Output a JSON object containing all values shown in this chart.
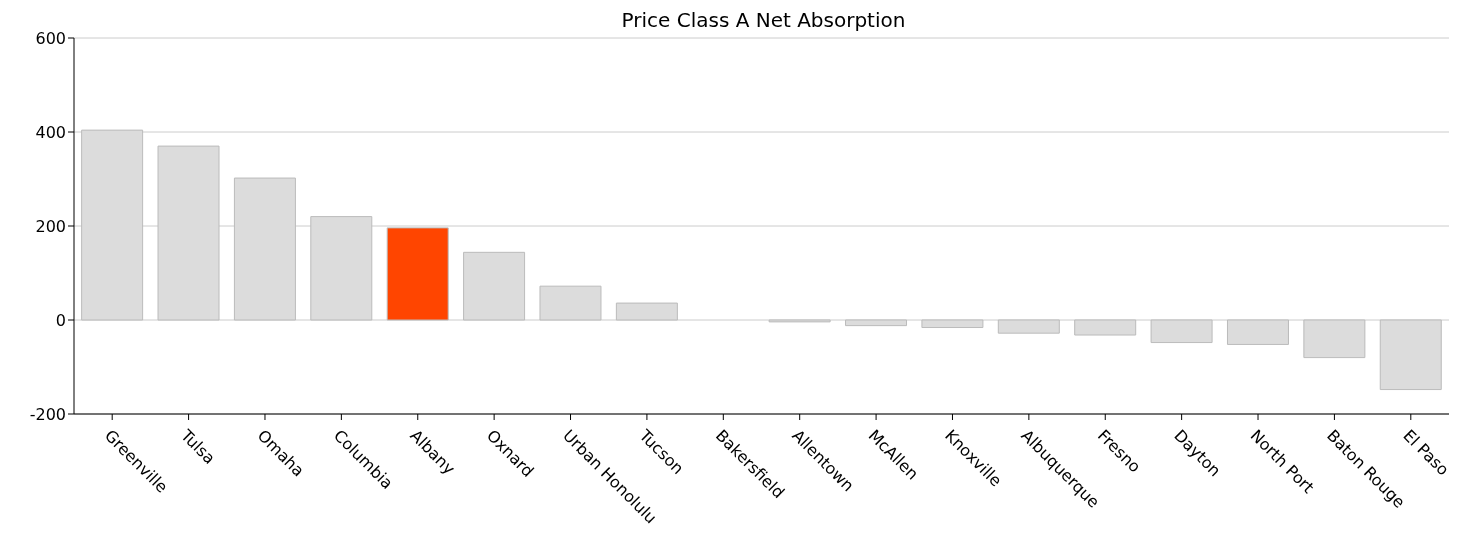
{
  "chart_data": {
    "type": "bar",
    "title": "Price Class A Net Absorption",
    "categories": [
      "Greenville",
      "Tulsa",
      "Omaha",
      "Columbia",
      "Albany",
      "Oxnard",
      "Urban Honolulu",
      "Tucson",
      "Bakersfield",
      "Allentown",
      "McAllen",
      "Knoxville",
      "Albuquerque",
      "Fresno",
      "Dayton",
      "North Port",
      "Baton Rouge",
      "El Paso"
    ],
    "values": [
      404,
      370,
      302,
      220,
      196,
      144,
      72,
      36,
      0,
      -4,
      -12,
      -16,
      -28,
      -32,
      -48,
      -52,
      -80,
      -148
    ],
    "colors": [
      "#dcdcdc",
      "#dcdcdc",
      "#dcdcdc",
      "#dcdcdc",
      "#ff4500",
      "#dcdcdc",
      "#dcdcdc",
      "#dcdcdc",
      "#dcdcdc",
      "#dcdcdc",
      "#dcdcdc",
      "#dcdcdc",
      "#dcdcdc",
      "#dcdcdc",
      "#dcdcdc",
      "#dcdcdc",
      "#dcdcdc",
      "#dcdcdc"
    ],
    "ylim": [
      -200,
      600
    ],
    "yticks": [
      -200,
      0,
      200,
      400,
      600
    ],
    "grid": "y"
  }
}
